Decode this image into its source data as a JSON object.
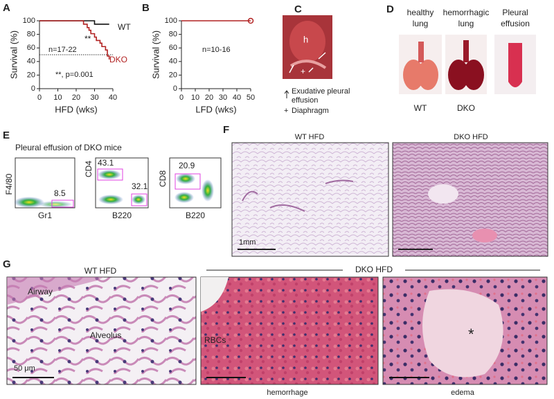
{
  "chart_data": [
    {
      "type": "step",
      "ylabel": "Survival (%)",
      "xlabel": "HFD (wks)",
      "xlim": [
        0,
        40
      ],
      "xticks": [
        0,
        10,
        20,
        30,
        40
      ],
      "ylim": [
        0,
        100
      ],
      "yticks": [
        0,
        20,
        40,
        60,
        80,
        100
      ],
      "reference_line": 50,
      "annotations": [
        "n=17-22",
        "**",
        "**, p=0.001"
      ],
      "series": [
        {
          "name": "WT",
          "color": "#111111",
          "x": [
            0,
            30,
            38
          ],
          "values": [
            100,
            95,
            95
          ]
        },
        {
          "name": "DKO",
          "color": "#b22222",
          "x": [
            0,
            24,
            26,
            27,
            28,
            30,
            31,
            33,
            34,
            36,
            37,
            38
          ],
          "values": [
            100,
            95,
            90,
            86,
            81,
            76,
            71,
            67,
            62,
            57,
            48,
            43
          ]
        }
      ]
    },
    {
      "type": "step",
      "ylabel": "Survival (%)",
      "xlabel": "LFD (wks)",
      "xlim": [
        0,
        50
      ],
      "xticks": [
        0,
        10,
        20,
        30,
        40,
        50
      ],
      "ylim": [
        0,
        100
      ],
      "yticks": [
        0,
        20,
        40,
        60,
        80,
        100
      ],
      "annotations": [
        "n=10-16"
      ],
      "series": [
        {
          "color": "#b22222",
          "x": [
            0,
            50
          ],
          "values": [
            100,
            100
          ]
        }
      ]
    }
  ],
  "panel_letters": [
    "A",
    "B",
    "C",
    "D",
    "E",
    "F",
    "G"
  ],
  "panel_c": {
    "marker": "h",
    "arrow_legend_lines": [
      "Exudative pleural",
      "effusion"
    ],
    "plus_legend": "Diaphragm"
  },
  "panel_d": {
    "labels": [
      [
        "healthy",
        "lung"
      ],
      [
        "hemorrhagic",
        "lung"
      ],
      [
        "Pleural",
        "effusion"
      ]
    ],
    "genotypes": [
      "WT",
      "DKO"
    ]
  },
  "panel_e": {
    "title": "Pleural effusion of DKO mice",
    "plots": [
      {
        "x_label": "Gr1",
        "y_label": "F4/80",
        "gates": [
          8.5
        ]
      },
      {
        "x_label": "B220",
        "y_label": "CD4",
        "gates": [
          43.1,
          32.1
        ]
      },
      {
        "x_label": "B220",
        "y_label": "CD8",
        "gates": [
          20.9
        ]
      }
    ]
  },
  "panel_f": {
    "images": [
      "WT HFD",
      "DKO HFD"
    ],
    "scale_bar": "1mm"
  },
  "panel_g": {
    "labels": [
      "WT HFD",
      "DKO HFD"
    ],
    "annotations": [
      "Airway",
      "Alveolus",
      "RBCs",
      "*"
    ],
    "captions": [
      "hemorrhage",
      "edema"
    ],
    "scale_bar": "50 μm"
  }
}
